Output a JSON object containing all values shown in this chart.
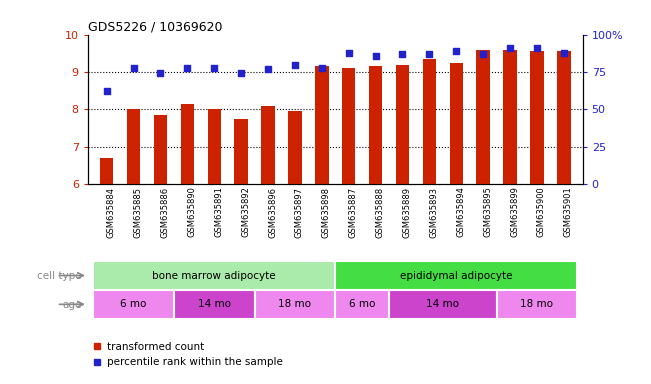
{
  "title": "GDS5226 / 10369620",
  "samples": [
    "GSM635884",
    "GSM635885",
    "GSM635886",
    "GSM635890",
    "GSM635891",
    "GSM635892",
    "GSM635896",
    "GSM635897",
    "GSM635898",
    "GSM635887",
    "GSM635888",
    "GSM635889",
    "GSM635893",
    "GSM635894",
    "GSM635895",
    "GSM635899",
    "GSM635900",
    "GSM635901"
  ],
  "transformed_count": [
    6.7,
    8.0,
    7.85,
    8.15,
    8.0,
    7.75,
    8.1,
    7.95,
    9.15,
    9.1,
    9.15,
    9.2,
    9.35,
    9.25,
    9.6,
    9.6,
    9.55,
    9.55
  ],
  "percentile_rank": [
    62,
    78,
    74,
    78,
    78,
    74,
    77,
    80,
    78,
    88,
    86,
    87,
    87,
    89,
    87,
    91,
    91,
    88
  ],
  "ylim_left": [
    6,
    10
  ],
  "ylim_right": [
    0,
    100
  ],
  "yticks_left": [
    6,
    7,
    8,
    9,
    10
  ],
  "yticks_right": [
    0,
    25,
    50,
    75,
    100
  ],
  "ytick_labels_right": [
    "0",
    "25",
    "50",
    "75",
    "100%"
  ],
  "bar_color": "#cc2200",
  "dot_color": "#2222cc",
  "grid_color": "#000000",
  "bg_sample_color": "#d8d8d8",
  "cell_type_groups": [
    {
      "label": "bone marrow adipocyte",
      "start": 0,
      "end": 9,
      "color": "#aaeaaa"
    },
    {
      "label": "epididymal adipocyte",
      "start": 9,
      "end": 18,
      "color": "#44dd44"
    }
  ],
  "age_groups": [
    {
      "label": "6 mo",
      "start": 0,
      "end": 3,
      "color": "#ee88ee"
    },
    {
      "label": "14 mo",
      "start": 3,
      "end": 6,
      "color": "#cc44cc"
    },
    {
      "label": "18 mo",
      "start": 6,
      "end": 9,
      "color": "#ee88ee"
    },
    {
      "label": "6 mo",
      "start": 9,
      "end": 11,
      "color": "#ee88ee"
    },
    {
      "label": "14 mo",
      "start": 11,
      "end": 15,
      "color": "#cc44cc"
    },
    {
      "label": "18 mo",
      "start": 15,
      "end": 18,
      "color": "#ee88ee"
    }
  ],
  "legend_bar_label": "transformed count",
  "legend_dot_label": "percentile rank within the sample",
  "cell_type_label": "cell type",
  "age_label": "age",
  "bar_width": 0.5
}
